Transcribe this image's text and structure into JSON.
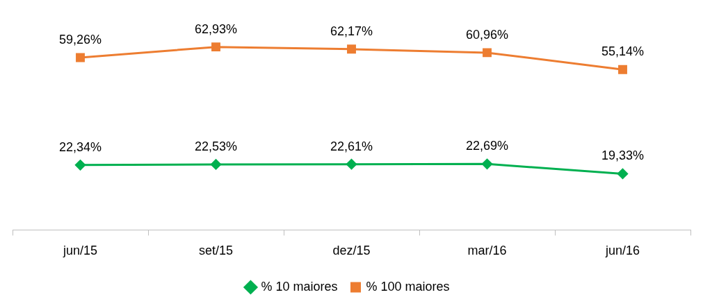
{
  "chart_data": {
    "type": "line",
    "categories": [
      "jun/15",
      "set/15",
      "dez/15",
      "mar/16",
      "jun/16"
    ],
    "series": [
      {
        "name": "% 10 maiores",
        "color": "#00b050",
        "marker": "diamond",
        "values": [
          22.34,
          22.53,
          22.61,
          22.69,
          19.33
        ],
        "value_labels": [
          "22,34%",
          "22,53%",
          "22,61%",
          "22,69%",
          "19,33%"
        ]
      },
      {
        "name": "% 100 maiores",
        "color": "#ed7d31",
        "marker": "square",
        "values": [
          59.26,
          62.93,
          62.17,
          60.96,
          55.14
        ],
        "value_labels": [
          "59,26%",
          "62,93%",
          "62,17%",
          "60,96%",
          "55,14%"
        ]
      }
    ],
    "grid": false,
    "legend": "bottom",
    "line_style": "solid"
  }
}
